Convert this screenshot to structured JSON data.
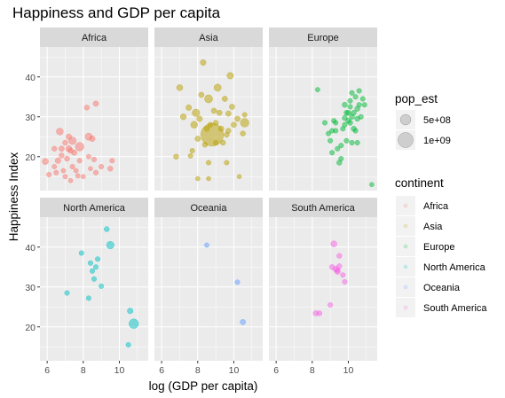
{
  "chart_data": {
    "type": "scatter",
    "title": "Happiness and GDP per capita",
    "xlabel": "log (GDP per capita)",
    "ylabel": "Happiness Index",
    "xlim": [
      5.6,
      11.6
    ],
    "ylim": [
      11.5,
      47.5
    ],
    "x_ticks": [
      "6",
      "8",
      "10"
    ],
    "x_tick_values": [
      6,
      8,
      10
    ],
    "y_ticks": [
      "20",
      "30",
      "40"
    ],
    "y_tick_values": [
      20,
      30,
      40
    ],
    "grid": true,
    "legend_position": "right",
    "size_legend": {
      "title": "pop_est",
      "entries": [
        {
          "label": "5e+08",
          "value": 500000000
        },
        {
          "label": "1e+09",
          "value": 1000000000
        }
      ]
    },
    "color_legend": {
      "title": "continent",
      "entries": [
        {
          "label": "Africa",
          "color": "#F8766D"
        },
        {
          "label": "Asia",
          "color": "#B79F00"
        },
        {
          "label": "Europe",
          "color": "#00BA38"
        },
        {
          "label": "North America",
          "color": "#00BFC4"
        },
        {
          "label": "Oceania",
          "color": "#619CFF"
        },
        {
          "label": "South America",
          "color": "#F564E3"
        }
      ]
    },
    "panels": [
      {
        "name": "Africa",
        "color": "#F8766D",
        "points": [
          [
            5.9,
            18.8,
            40
          ],
          [
            6.1,
            15.5,
            15
          ],
          [
            6.4,
            17.5,
            12
          ],
          [
            6.4,
            22,
            18
          ],
          [
            6.5,
            16,
            15
          ],
          [
            6.6,
            19,
            30
          ],
          [
            6.7,
            26.3,
            60
          ],
          [
            6.8,
            22,
            25
          ],
          [
            6.8,
            20.3,
            20
          ],
          [
            6.9,
            16.5,
            12
          ],
          [
            7.0,
            23.5,
            20
          ],
          [
            7.0,
            15,
            12
          ],
          [
            7.1,
            19.5,
            20
          ],
          [
            7.2,
            25,
            30
          ],
          [
            7.2,
            22,
            40
          ],
          [
            7.3,
            14,
            10
          ],
          [
            7.3,
            21.5,
            25
          ],
          [
            7.4,
            24,
            80
          ],
          [
            7.4,
            17.5,
            15
          ],
          [
            7.5,
            21,
            25
          ],
          [
            7.6,
            16.5,
            12
          ],
          [
            7.7,
            15.2,
            12
          ],
          [
            7.8,
            22.5,
            120
          ],
          [
            7.8,
            19,
            15
          ],
          [
            8.0,
            15,
            10
          ],
          [
            8.2,
            32.3,
            20
          ],
          [
            8.3,
            25,
            70
          ],
          [
            8.3,
            20,
            12
          ],
          [
            8.4,
            17,
            10
          ],
          [
            8.5,
            24.5,
            30
          ],
          [
            8.6,
            19.3,
            15
          ],
          [
            8.7,
            16,
            15
          ],
          [
            8.7,
            33.3,
            25
          ],
          [
            9.0,
            17.5,
            15
          ],
          [
            9.5,
            17,
            20
          ],
          [
            9.6,
            19,
            15
          ]
        ]
      },
      {
        "name": "Asia",
        "color": "#B79F00",
        "points": [
          [
            6.8,
            20,
            20
          ],
          [
            7.0,
            37.3,
            40
          ],
          [
            7.2,
            30,
            35
          ],
          [
            7.5,
            32.3,
            30
          ],
          [
            7.6,
            20.2,
            15
          ],
          [
            7.7,
            21.5,
            15
          ],
          [
            7.8,
            28,
            60
          ],
          [
            7.9,
            31,
            80
          ],
          [
            8.0,
            24.5,
            25
          ],
          [
            8.0,
            14.5,
            10
          ],
          [
            8.1,
            29.5,
            30
          ],
          [
            8.2,
            35.5,
            25
          ],
          [
            8.3,
            43.6,
            30
          ],
          [
            8.4,
            23,
            20
          ],
          [
            8.5,
            27,
            25
          ],
          [
            8.6,
            34.5,
            100
          ],
          [
            8.6,
            18.5,
            15
          ],
          [
            8.7,
            28,
            20
          ],
          [
            8.8,
            25.5,
            1400
          ],
          [
            8.9,
            31.5,
            25
          ],
          [
            9.0,
            28.5,
            20
          ],
          [
            9.0,
            23.5,
            15
          ],
          [
            9.1,
            37.3,
            70
          ],
          [
            9.2,
            31,
            25
          ],
          [
            9.3,
            27,
            25
          ],
          [
            9.4,
            23.5,
            20
          ],
          [
            9.5,
            34.5,
            25
          ],
          [
            9.6,
            25.5,
            20
          ],
          [
            9.6,
            18.5,
            15
          ],
          [
            9.7,
            30.8,
            25
          ],
          [
            9.7,
            26.5,
            20
          ],
          [
            9.8,
            40.3,
            50
          ],
          [
            9.9,
            32.5,
            25
          ],
          [
            10.0,
            28,
            25
          ],
          [
            10.2,
            29.5,
            25
          ],
          [
            10.3,
            15,
            10
          ],
          [
            10.5,
            25.8,
            20
          ],
          [
            10.6,
            30.5,
            15
          ],
          [
            10.6,
            28.5,
            120
          ],
          [
            8.6,
            14.5,
            10
          ]
        ]
      },
      {
        "name": "Europe",
        "color": "#00BA38",
        "points": [
          [
            8.3,
            36.8,
            12
          ],
          [
            8.7,
            28.5,
            15
          ],
          [
            8.9,
            25.8,
            15
          ],
          [
            9.0,
            24,
            15
          ],
          [
            9.1,
            26.5,
            15
          ],
          [
            9.1,
            21,
            15
          ],
          [
            9.2,
            29,
            15
          ],
          [
            9.3,
            28.5,
            15
          ],
          [
            9.3,
            26.5,
            15
          ],
          [
            9.4,
            22,
            15
          ],
          [
            9.5,
            18.5,
            20
          ],
          [
            9.6,
            22.8,
            15
          ],
          [
            9.6,
            19.5,
            15
          ],
          [
            9.7,
            27,
            15
          ],
          [
            9.8,
            28,
            15
          ],
          [
            9.8,
            29.7,
            20
          ],
          [
            9.8,
            33,
            20
          ],
          [
            9.9,
            24,
            15
          ],
          [
            9.9,
            31,
            20
          ],
          [
            10.0,
            31,
            20
          ],
          [
            10.0,
            29,
            20
          ],
          [
            10.1,
            28.5,
            20
          ],
          [
            10.1,
            32.5,
            15
          ],
          [
            10.1,
            34,
            15
          ],
          [
            10.2,
            36,
            15
          ],
          [
            10.2,
            30,
            20
          ],
          [
            10.2,
            23.5,
            15
          ],
          [
            10.3,
            27,
            20
          ],
          [
            10.3,
            31,
            20
          ],
          [
            10.4,
            26.5,
            15
          ],
          [
            10.4,
            35,
            15
          ],
          [
            10.5,
            32,
            20
          ],
          [
            10.5,
            29.5,
            20
          ],
          [
            10.5,
            23.5,
            15
          ],
          [
            10.6,
            33,
            15
          ],
          [
            10.6,
            36.5,
            15
          ],
          [
            10.7,
            30,
            15
          ],
          [
            10.8,
            34.5,
            15
          ],
          [
            10.9,
            33,
            15
          ],
          [
            11.3,
            13,
            10
          ]
        ]
      },
      {
        "name": "North America",
        "color": "#00BFC4",
        "points": [
          [
            7.1,
            28.5,
            15
          ],
          [
            7.9,
            38.5,
            15
          ],
          [
            8.3,
            27.2,
            15
          ],
          [
            8.4,
            36,
            15
          ],
          [
            8.5,
            34,
            15
          ],
          [
            8.6,
            32,
            15
          ],
          [
            8.7,
            35,
            15
          ],
          [
            8.8,
            37,
            15
          ],
          [
            9.0,
            30.2,
            15
          ],
          [
            9.3,
            44.5,
            20
          ],
          [
            9.5,
            40.5,
            80
          ],
          [
            10.5,
            15.5,
            15
          ],
          [
            10.6,
            24,
            30
          ],
          [
            10.8,
            20.8,
            160
          ]
        ]
      },
      {
        "name": "Oceania",
        "color": "#619CFF",
        "points": [
          [
            8.5,
            40.5,
            12
          ],
          [
            10.2,
            31.2,
            15
          ],
          [
            10.5,
            21.2,
            25
          ]
        ]
      },
      {
        "name": "South America",
        "color": "#F564E3",
        "points": [
          [
            8.2,
            23.4,
            25
          ],
          [
            8.4,
            23.4,
            20
          ],
          [
            9.0,
            25.5,
            15
          ],
          [
            9.1,
            35,
            20
          ],
          [
            9.2,
            40.8,
            40
          ],
          [
            9.3,
            34.5,
            35
          ],
          [
            9.4,
            33.8,
            25
          ],
          [
            9.5,
            35.2,
            20
          ],
          [
            9.5,
            37.8,
            20
          ],
          [
            9.7,
            33,
            15
          ],
          [
            9.8,
            31.3,
            15
          ],
          [
            9.4,
            34.2,
            25
          ]
        ]
      }
    ]
  }
}
